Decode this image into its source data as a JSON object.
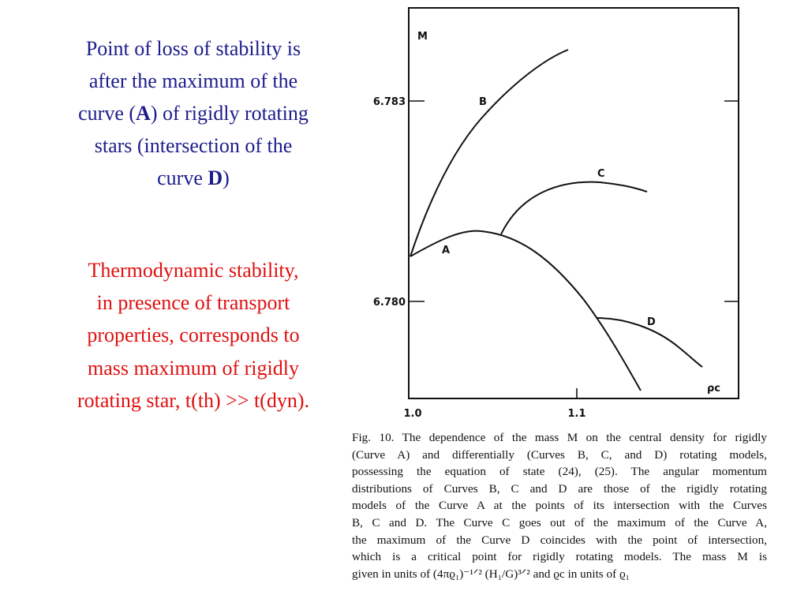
{
  "slide": {
    "statement": [
      [
        {
          "text": "Point of  loss of stability is"
        }
      ],
      [
        {
          "text": "after the maximum of the"
        }
      ],
      [
        {
          "text": "curve ("
        },
        {
          "text": "A",
          "bold": true
        },
        {
          "text": ") of rigidly rotating"
        }
      ],
      [
        {
          "text": "stars (intersection of the"
        }
      ],
      [
        {
          "text": "curve "
        },
        {
          "text": "D",
          "bold": true
        },
        {
          "text": ")"
        }
      ]
    ],
    "note": [
      "Thermodynamic stability,",
      "in presence of transport",
      "properties, corresponds to",
      "mass maximum of rigidly",
      "rotating star, t(th) >> t(dyn)."
    ],
    "figure": {
      "y_axis_label": "M",
      "x_axis_label": "ρc",
      "y_tick_labels": [
        "6.783",
        "6.780"
      ],
      "x_tick_labels": [
        "1.0",
        "1.1"
      ],
      "curve_labels": [
        "A",
        "B",
        "C",
        "D"
      ],
      "caption": [
        "Fig. 10. The dependence of the mass M on the central density for rigidly",
        "(Curve A) and differentially (Curves B, C, and D) rotating models,",
        "possessing the equation of state (24), (25). The angular momentum",
        "distributions of Curves B, C and D are those of the rigidly rotating",
        "models of the Curve A at the points of its intersection with the Curves",
        "B, C and D. The Curve C goes out of the maximum of the Curve A,",
        "the maximum of the Curve D coincides with the point of intersection,",
        "which is a critical point for rigidly rotating models. The mass M is",
        "given in units of (4πϱ₁)⁻¹ᐟ² (H₁/G)³ᐟ² and ϱc in units of ϱ₁"
      ]
    }
  }
}
